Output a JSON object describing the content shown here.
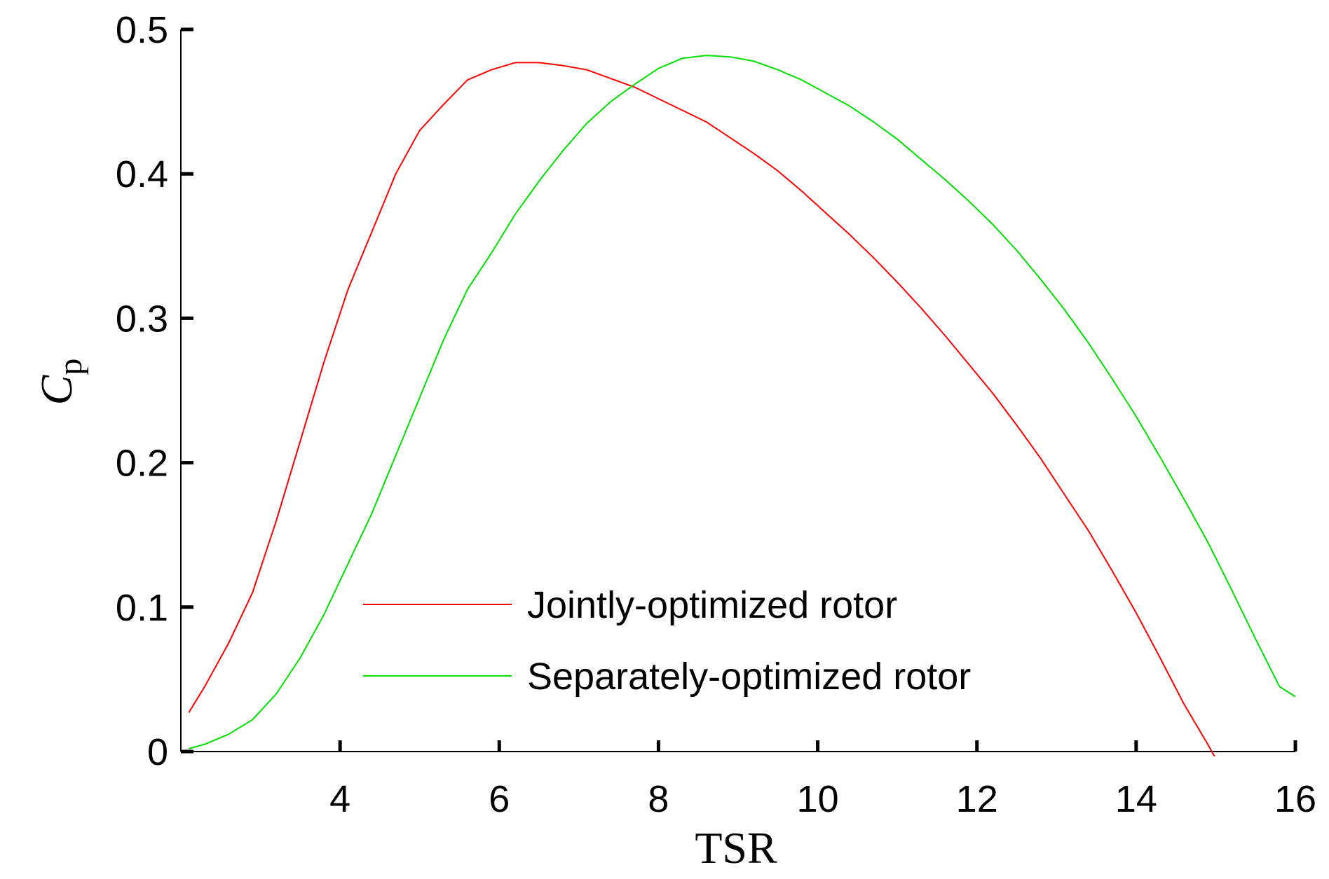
{
  "chart_data": {
    "type": "line",
    "xlabel": "TSR",
    "ylabel": "C",
    "ylabel_subscript": "p",
    "xlim": [
      2,
      16
    ],
    "ylim": [
      0,
      0.5
    ],
    "xticks": [
      4,
      6,
      8,
      10,
      12,
      14,
      16
    ],
    "xtick_labels": [
      "4",
      "6",
      "8",
      "10",
      "12",
      "14",
      "16"
    ],
    "yticks": [
      0,
      0.1,
      0.2,
      0.3,
      0.4,
      0.5
    ],
    "ytick_labels": [
      "0",
      "0.1",
      "0.2",
      "0.3",
      "0.4",
      "0.5"
    ],
    "grid": false,
    "legend_position": "bottom-center",
    "series": [
      {
        "name": "Jointly-optimized rotor",
        "color": "#ff0000",
        "x": [
          2.1,
          2.3,
          2.6,
          2.9,
          3.2,
          3.5,
          3.8,
          4.1,
          4.4,
          4.7,
          5.0,
          5.3,
          5.6,
          5.9,
          6.2,
          6.5,
          6.8,
          7.1,
          7.4,
          7.7,
          8.0,
          8.3,
          8.6,
          8.9,
          9.2,
          9.5,
          9.8,
          10.1,
          10.4,
          10.7,
          11.0,
          11.3,
          11.6,
          11.9,
          12.2,
          12.5,
          12.8,
          13.1,
          13.4,
          13.7,
          14.0,
          14.3,
          14.6,
          14.9,
          15.2
        ],
        "y": [
          0.027,
          0.045,
          0.075,
          0.11,
          0.16,
          0.215,
          0.27,
          0.32,
          0.36,
          0.4,
          0.43,
          0.448,
          0.465,
          0.472,
          0.477,
          0.477,
          0.475,
          0.472,
          0.466,
          0.46,
          0.452,
          0.444,
          0.436,
          0.425,
          0.414,
          0.402,
          0.388,
          0.373,
          0.358,
          0.342,
          0.325,
          0.307,
          0.288,
          0.268,
          0.248,
          0.226,
          0.203,
          0.178,
          0.153,
          0.125,
          0.096,
          0.065,
          0.033,
          0.005,
          -0.025
        ]
      },
      {
        "name": "Separately-optimized rotor",
        "color": "#00e000",
        "x": [
          2.1,
          2.3,
          2.6,
          2.9,
          3.2,
          3.5,
          3.8,
          4.1,
          4.4,
          4.7,
          5.0,
          5.3,
          5.6,
          5.9,
          6.2,
          6.5,
          6.8,
          7.1,
          7.4,
          7.7,
          8.0,
          8.3,
          8.6,
          8.9,
          9.2,
          9.5,
          9.8,
          10.1,
          10.4,
          10.7,
          11.0,
          11.3,
          11.6,
          11.9,
          12.2,
          12.5,
          12.8,
          13.1,
          13.4,
          13.7,
          14.0,
          14.3,
          14.6,
          14.9,
          15.2,
          15.5,
          15.8,
          16.0
        ],
        "y": [
          0.002,
          0.005,
          0.012,
          0.022,
          0.04,
          0.065,
          0.095,
          0.13,
          0.165,
          0.205,
          0.245,
          0.285,
          0.32,
          0.345,
          0.372,
          0.395,
          0.416,
          0.435,
          0.45,
          0.462,
          0.473,
          0.48,
          0.482,
          0.481,
          0.478,
          0.472,
          0.465,
          0.456,
          0.447,
          0.436,
          0.424,
          0.41,
          0.396,
          0.381,
          0.365,
          0.347,
          0.327,
          0.306,
          0.283,
          0.258,
          0.232,
          0.204,
          0.175,
          0.145,
          0.112,
          0.078,
          0.045,
          0.038
        ]
      }
    ]
  }
}
